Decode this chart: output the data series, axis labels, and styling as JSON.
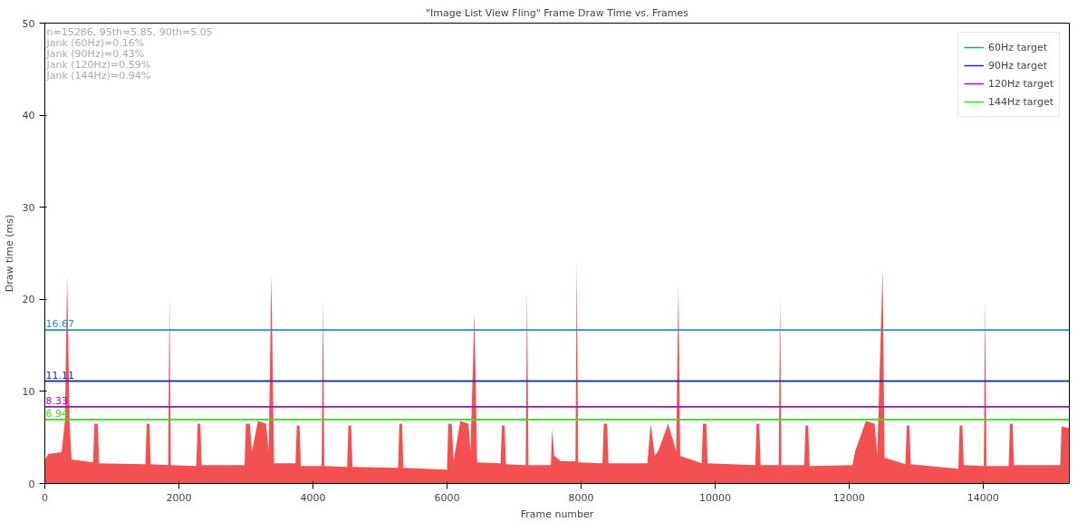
{
  "chart_data": {
    "type": "area",
    "title": "\"Image List View Fling\" Frame Draw Time vs. Frames",
    "xlabel": "Frame number",
    "ylabel": "Draw time (ms)",
    "x": [
      0,
      50,
      250,
      300,
      332,
      370,
      400,
      720,
      740,
      790,
      810,
      1500,
      1520,
      1560,
      1580,
      1840,
      1860,
      1880,
      2260,
      2280,
      2320,
      2340,
      2980,
      3000,
      3060,
      3090,
      3180,
      3300,
      3340,
      3380,
      3420,
      3740,
      3760,
      3800,
      3820,
      4130,
      4150,
      4170,
      4510,
      4530,
      4570,
      4590,
      5270,
      5290,
      5330,
      5350,
      6000,
      6020,
      6070,
      6100,
      6200,
      6320,
      6350,
      6410,
      6450,
      6800,
      6820,
      6860,
      6880,
      7175,
      7195,
      7215,
      7550,
      7570,
      7600,
      7700,
      7917,
      7937,
      7957,
      8320,
      8340,
      8390,
      8410,
      8990,
      9040,
      9100,
      9150,
      9300,
      9420,
      9453,
      9480,
      9800,
      9820,
      9870,
      9890,
      10600,
      10620,
      10660,
      10680,
      10950,
      10970,
      10990,
      11330,
      11350,
      11390,
      11410,
      12050,
      12090,
      12250,
      12380,
      12420,
      12500,
      12530,
      12840,
      12860,
      12900,
      12920,
      13630,
      13650,
      13690,
      13710,
      14010,
      14030,
      14050,
      14380,
      14400,
      14440,
      14460,
      15150,
      15170,
      15286
    ],
    "series": [
      {
        "color": "#f55050",
        "values": [
          2.5,
          3.2,
          3.4,
          6.8,
          22.7,
          6.5,
          2.6,
          2.3,
          6.5,
          6.5,
          2.2,
          2.1,
          6.5,
          6.5,
          2.1,
          2.0,
          20.4,
          2.0,
          1.9,
          6.5,
          6.5,
          2.0,
          2.0,
          6.5,
          6.5,
          3.5,
          6.8,
          6.5,
          3.5,
          22.7,
          2.2,
          2.2,
          6.3,
          6.3,
          1.9,
          1.9,
          19.9,
          1.9,
          1.8,
          6.3,
          6.3,
          1.8,
          1.7,
          6.5,
          6.5,
          1.7,
          1.5,
          6.5,
          6.5,
          2.5,
          6.8,
          6.5,
          3.5,
          18.5,
          2.3,
          2.2,
          6.3,
          6.3,
          2.1,
          2.0,
          21.1,
          2.0,
          2.0,
          6.0,
          3.0,
          2.4,
          2.4,
          24.2,
          2.3,
          2.2,
          6.5,
          6.5,
          2.2,
          2.2,
          6.5,
          3.0,
          3.5,
          6.5,
          3.5,
          21.6,
          3.0,
          2.2,
          6.5,
          6.5,
          2.2,
          2.0,
          6.5,
          6.5,
          2.0,
          2.0,
          20.3,
          2.0,
          2.0,
          6.3,
          6.3,
          1.9,
          2.0,
          3.5,
          6.8,
          6.5,
          3.0,
          23.3,
          2.8,
          2.1,
          6.3,
          6.3,
          2.1,
          1.6,
          6.3,
          6.3,
          2.0,
          1.9,
          19.8,
          1.9,
          1.9,
          6.5,
          6.5,
          2.0,
          2.0,
          6.2,
          6.0
        ]
      }
    ],
    "xlim": [
      0,
      15286
    ],
    "ylim": [
      0,
      50
    ],
    "xticks": [
      0,
      2000,
      4000,
      6000,
      8000,
      10000,
      12000,
      14000
    ],
    "yticks": [
      0,
      10,
      20,
      30,
      40,
      50
    ],
    "ref_lines": [
      {
        "axis": "y",
        "value": 16.67,
        "label": "60Hz target",
        "color": "#1e8ee6"
      },
      {
        "axis": "y",
        "value": 11.11,
        "label": "90Hz target",
        "color": "#1432b4"
      },
      {
        "axis": "y",
        "value": 8.33,
        "label": "120Hz target",
        "color": "#9b0fd8"
      },
      {
        "axis": "y",
        "value": 6.94,
        "label": "144Hz target",
        "color": "#33e61a"
      }
    ],
    "annotations": [
      {
        "text": "16.67",
        "y": 16.67
      },
      {
        "text": "11.11",
        "y": 11.11
      },
      {
        "text": "8.33",
        "y": 8.33
      },
      {
        "text": "6.94",
        "y": 6.94
      },
      "n=15286, 95th=5.85, 90th=5.05",
      "Jank (60Hz)=0.16%",
      "Jank (90Hz)=0.43%",
      "Jank (120Hz)=0.59%",
      "Jank (144Hz)=0.94%"
    ],
    "grid": false,
    "legend": "top right"
  }
}
